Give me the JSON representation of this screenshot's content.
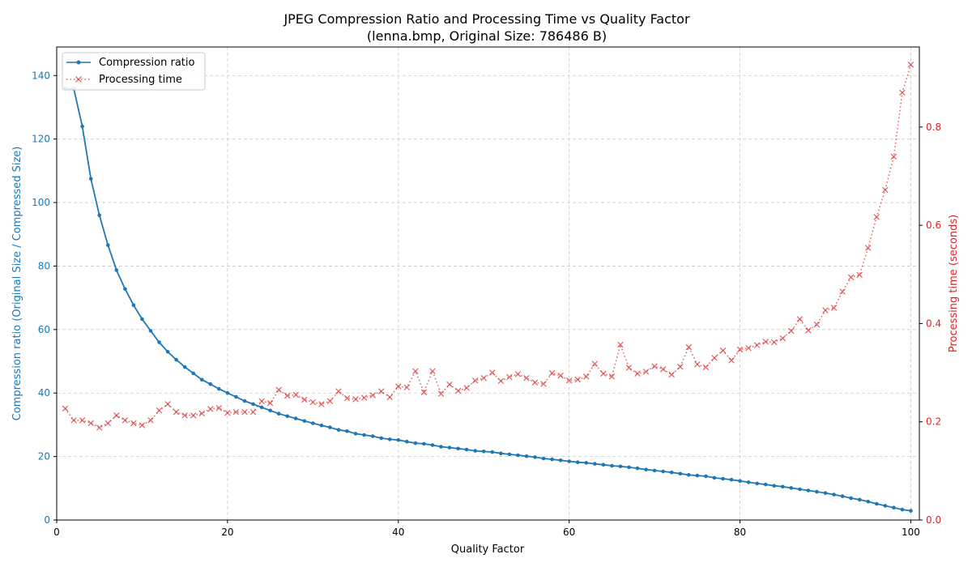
{
  "chart_data": {
    "type": "line",
    "title": "JPEG Compression Ratio and Processing Time vs Quality Factor",
    "subtitle": "(lenna.bmp, Original Size: 786486 B)",
    "xlabel": "Quality Factor",
    "ylabel_left": "Compression ratio (Original Size / Compressed Size)",
    "ylabel_right": "Processing time (seconds)",
    "xlim": [
      0,
      101
    ],
    "ylim_left": [
      0,
      149
    ],
    "ylim_right": [
      0,
      0.963
    ],
    "xticks": [
      0,
      20,
      40,
      60,
      80,
      100
    ],
    "yticks_left": [
      0,
      20,
      40,
      60,
      80,
      100,
      120,
      140
    ],
    "yticks_right": [
      0.0,
      0.2,
      0.4,
      0.6,
      0.8
    ],
    "grid": true,
    "legend_position": "upper-left",
    "colors": {
      "compression": "#1f77b4",
      "time": "#d62728",
      "grid": "#cccccc"
    },
    "x": [
      1,
      2,
      3,
      4,
      5,
      6,
      7,
      8,
      9,
      10,
      11,
      12,
      13,
      14,
      15,
      16,
      17,
      18,
      19,
      20,
      21,
      22,
      23,
      24,
      25,
      26,
      27,
      28,
      29,
      30,
      31,
      32,
      33,
      34,
      35,
      36,
      37,
      38,
      39,
      40,
      41,
      42,
      43,
      44,
      45,
      46,
      47,
      48,
      49,
      50,
      51,
      52,
      53,
      54,
      55,
      56,
      57,
      58,
      59,
      60,
      61,
      62,
      63,
      64,
      65,
      66,
      67,
      68,
      69,
      70,
      71,
      72,
      73,
      74,
      75,
      76,
      77,
      78,
      79,
      80,
      81,
      82,
      83,
      84,
      85,
      86,
      87,
      88,
      89,
      90,
      91,
      92,
      93,
      94,
      95,
      96,
      97,
      98,
      99,
      100
    ],
    "series": [
      {
        "name": "Compression ratio",
        "axis": "left",
        "style": "solid-dot",
        "values": [
          135.9,
          135.8,
          124.0,
          107.5,
          96.0,
          86.6,
          78.7,
          72.8,
          67.7,
          63.3,
          59.6,
          56.0,
          53.0,
          50.5,
          48.2,
          46.2,
          44.2,
          42.8,
          41.3,
          40.0,
          38.8,
          37.5,
          36.5,
          35.5,
          34.5,
          33.5,
          32.7,
          32.0,
          31.2,
          30.5,
          29.8,
          29.2,
          28.4,
          28.0,
          27.2,
          26.8,
          26.4,
          25.8,
          25.4,
          25.2,
          24.7,
          24.2,
          24.0,
          23.6,
          23.1,
          22.8,
          22.5,
          22.2,
          21.8,
          21.6,
          21.4,
          21.0,
          20.7,
          20.4,
          20.1,
          19.8,
          19.4,
          19.1,
          18.8,
          18.5,
          18.2,
          18.0,
          17.7,
          17.4,
          17.1,
          16.9,
          16.6,
          16.3,
          15.9,
          15.6,
          15.3,
          15.0,
          14.6,
          14.2,
          14.0,
          13.8,
          13.3,
          13.0,
          12.7,
          12.3,
          11.9,
          11.5,
          11.2,
          10.8,
          10.5,
          10.1,
          9.7,
          9.3,
          8.9,
          8.5,
          8.0,
          7.5,
          6.9,
          6.4,
          5.8,
          5.1,
          4.5,
          3.9,
          3.3,
          2.9
        ]
      },
      {
        "name": "Processing time",
        "axis": "right",
        "style": "dotted-x",
        "values": [
          0.227,
          0.203,
          0.203,
          0.197,
          0.188,
          0.197,
          0.213,
          0.203,
          0.197,
          0.193,
          0.203,
          0.223,
          0.236,
          0.22,
          0.213,
          0.213,
          0.217,
          0.226,
          0.228,
          0.218,
          0.22,
          0.22,
          0.22,
          0.242,
          0.238,
          0.265,
          0.253,
          0.255,
          0.245,
          0.24,
          0.236,
          0.242,
          0.262,
          0.248,
          0.246,
          0.249,
          0.254,
          0.262,
          0.25,
          0.272,
          0.27,
          0.303,
          0.26,
          0.303,
          0.257,
          0.276,
          0.263,
          0.269,
          0.284,
          0.289,
          0.3,
          0.283,
          0.291,
          0.297,
          0.289,
          0.28,
          0.277,
          0.299,
          0.294,
          0.284,
          0.286,
          0.292,
          0.318,
          0.298,
          0.292,
          0.357,
          0.31,
          0.298,
          0.302,
          0.313,
          0.307,
          0.296,
          0.312,
          0.352,
          0.317,
          0.311,
          0.33,
          0.345,
          0.325,
          0.347,
          0.35,
          0.356,
          0.363,
          0.362,
          0.37,
          0.385,
          0.409,
          0.386,
          0.398,
          0.427,
          0.432,
          0.465,
          0.494,
          0.499,
          0.554,
          0.617,
          0.672,
          0.74,
          0.87,
          0.927
        ]
      }
    ]
  }
}
